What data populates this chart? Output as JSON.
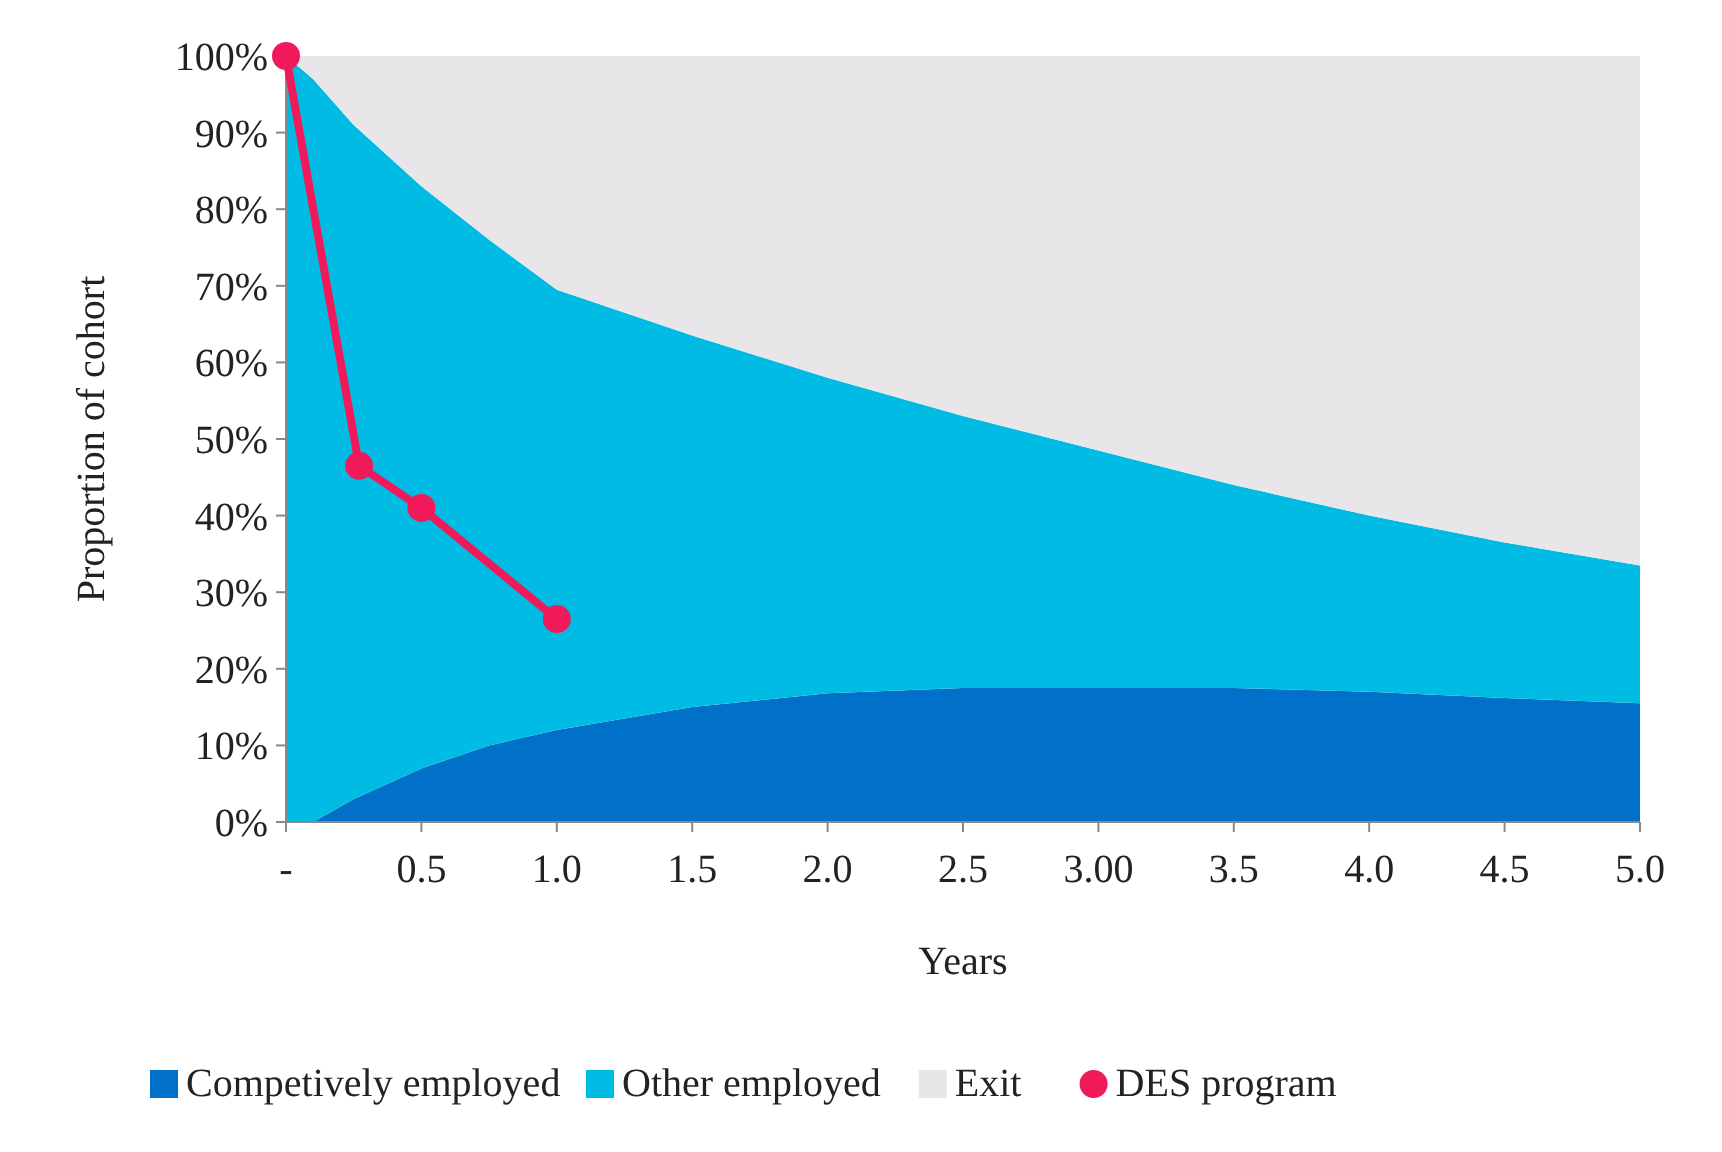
{
  "chart_data": {
    "type": "area",
    "stacked": true,
    "xlabel": "Years",
    "ylabel": "Proportion of cohort",
    "x": [
      0,
      0.1,
      0.25,
      0.5,
      0.75,
      1,
      1.5,
      2,
      2.5,
      3,
      3.5,
      4,
      4.5,
      5
    ],
    "series": [
      {
        "name": "Competively employed",
        "color": "#0070c8",
        "values": [
          0,
          0,
          3,
          7,
          10,
          12,
          15,
          16.8,
          17.5,
          17.5,
          17.5,
          17,
          16.2,
          15.5
        ]
      },
      {
        "name": "Other employed",
        "color": "#00bce4",
        "values": [
          100,
          97,
          88,
          76,
          66,
          57.5,
          48.5,
          41.2,
          35.5,
          31,
          26.5,
          23,
          20.3,
          18
        ]
      },
      {
        "name": "Exit",
        "color": "#e8e6e8",
        "values": [
          0,
          3,
          9,
          17,
          24,
          30.5,
          36.5,
          42,
          47,
          51.5,
          56,
          60,
          63.5,
          66.5
        ]
      },
      {
        "name": "DES program",
        "color": "#f0195a",
        "type": "line",
        "marker": "circle",
        "x": [
          0,
          0.27,
          0.5,
          1
        ],
        "values": [
          100,
          46.5,
          41,
          26.5
        ]
      }
    ],
    "xlim": [
      0,
      5
    ],
    "xticks": [
      {
        "value": 0,
        "label": "-"
      },
      0.5,
      {
        "value": 1,
        "label": "1.0"
      },
      1.5,
      {
        "value": 2,
        "label": "2.0"
      },
      2.5,
      {
        "value": 3,
        "label": "3.00"
      },
      3.5,
      {
        "value": 4,
        "label": "4.0"
      },
      4.5,
      {
        "value": 5,
        "label": "5.0"
      }
    ],
    "ylim": [
      0,
      100
    ],
    "yticks": [
      {
        "value": 0,
        "label": "0%"
      },
      {
        "value": 10,
        "label": "10%"
      },
      {
        "value": 20,
        "label": "20%"
      },
      {
        "value": 30,
        "label": "30%"
      },
      {
        "value": 40,
        "label": "40%"
      },
      {
        "value": 50,
        "label": "50%"
      },
      {
        "value": 60,
        "label": "60%"
      },
      {
        "value": 70,
        "label": "70%"
      },
      {
        "value": 80,
        "label": "80%"
      },
      {
        "value": 90,
        "label": "90%"
      },
      {
        "value": 100,
        "label": "100%"
      }
    ],
    "legend": "bottom"
  }
}
